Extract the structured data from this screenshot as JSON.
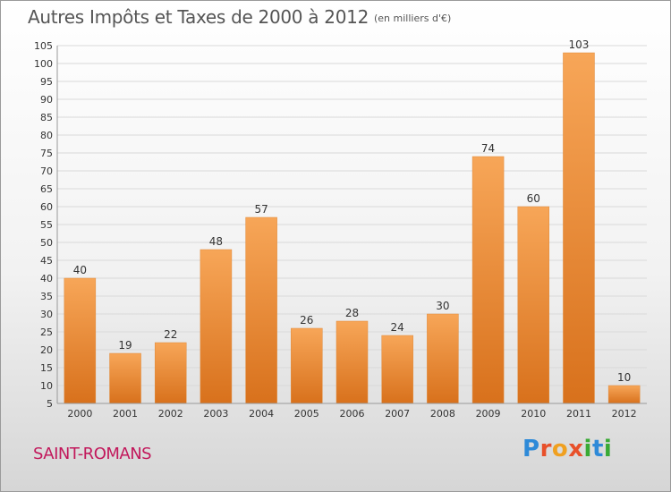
{
  "header": {
    "title": "Autres Impôts et Taxes de 2000 à 2012",
    "subtitle": "(en milliers d'€)"
  },
  "footer": {
    "town": "SAINT-ROMANS",
    "logo_letters": [
      {
        "char": "P",
        "color": "#2e8ad8"
      },
      {
        "char": "r",
        "color": "#e8502a"
      },
      {
        "char": "o",
        "color": "#f0a020"
      },
      {
        "char": "x",
        "color": "#e8502a"
      },
      {
        "char": "i",
        "color": "#3aaa35"
      },
      {
        "char": "t",
        "color": "#2e8ad8"
      },
      {
        "char": "i",
        "color": "#3aaa35"
      }
    ]
  },
  "chart_data": {
    "type": "bar",
    "categories": [
      "2000",
      "2001",
      "2002",
      "2003",
      "2004",
      "2005",
      "2006",
      "2007",
      "2008",
      "2009",
      "2010",
      "2011",
      "2012"
    ],
    "values": [
      40,
      19,
      22,
      48,
      57,
      26,
      28,
      24,
      30,
      74,
      60,
      103,
      10
    ],
    "title": "Autres Impôts et Taxes de 2000 à 2012",
    "subtitle": "(en milliers d'€)",
    "xlabel": "",
    "ylabel": "",
    "ylim": [
      5,
      105
    ],
    "yticks": [
      5,
      10,
      15,
      20,
      25,
      30,
      35,
      40,
      45,
      50,
      55,
      60,
      65,
      70,
      75,
      80,
      85,
      90,
      95,
      100,
      105
    ],
    "grid": true,
    "legend": "none",
    "bar_color_light": "#f7a658",
    "bar_color_dark": "#d8711c",
    "grid_color": "#d9d9d9"
  }
}
